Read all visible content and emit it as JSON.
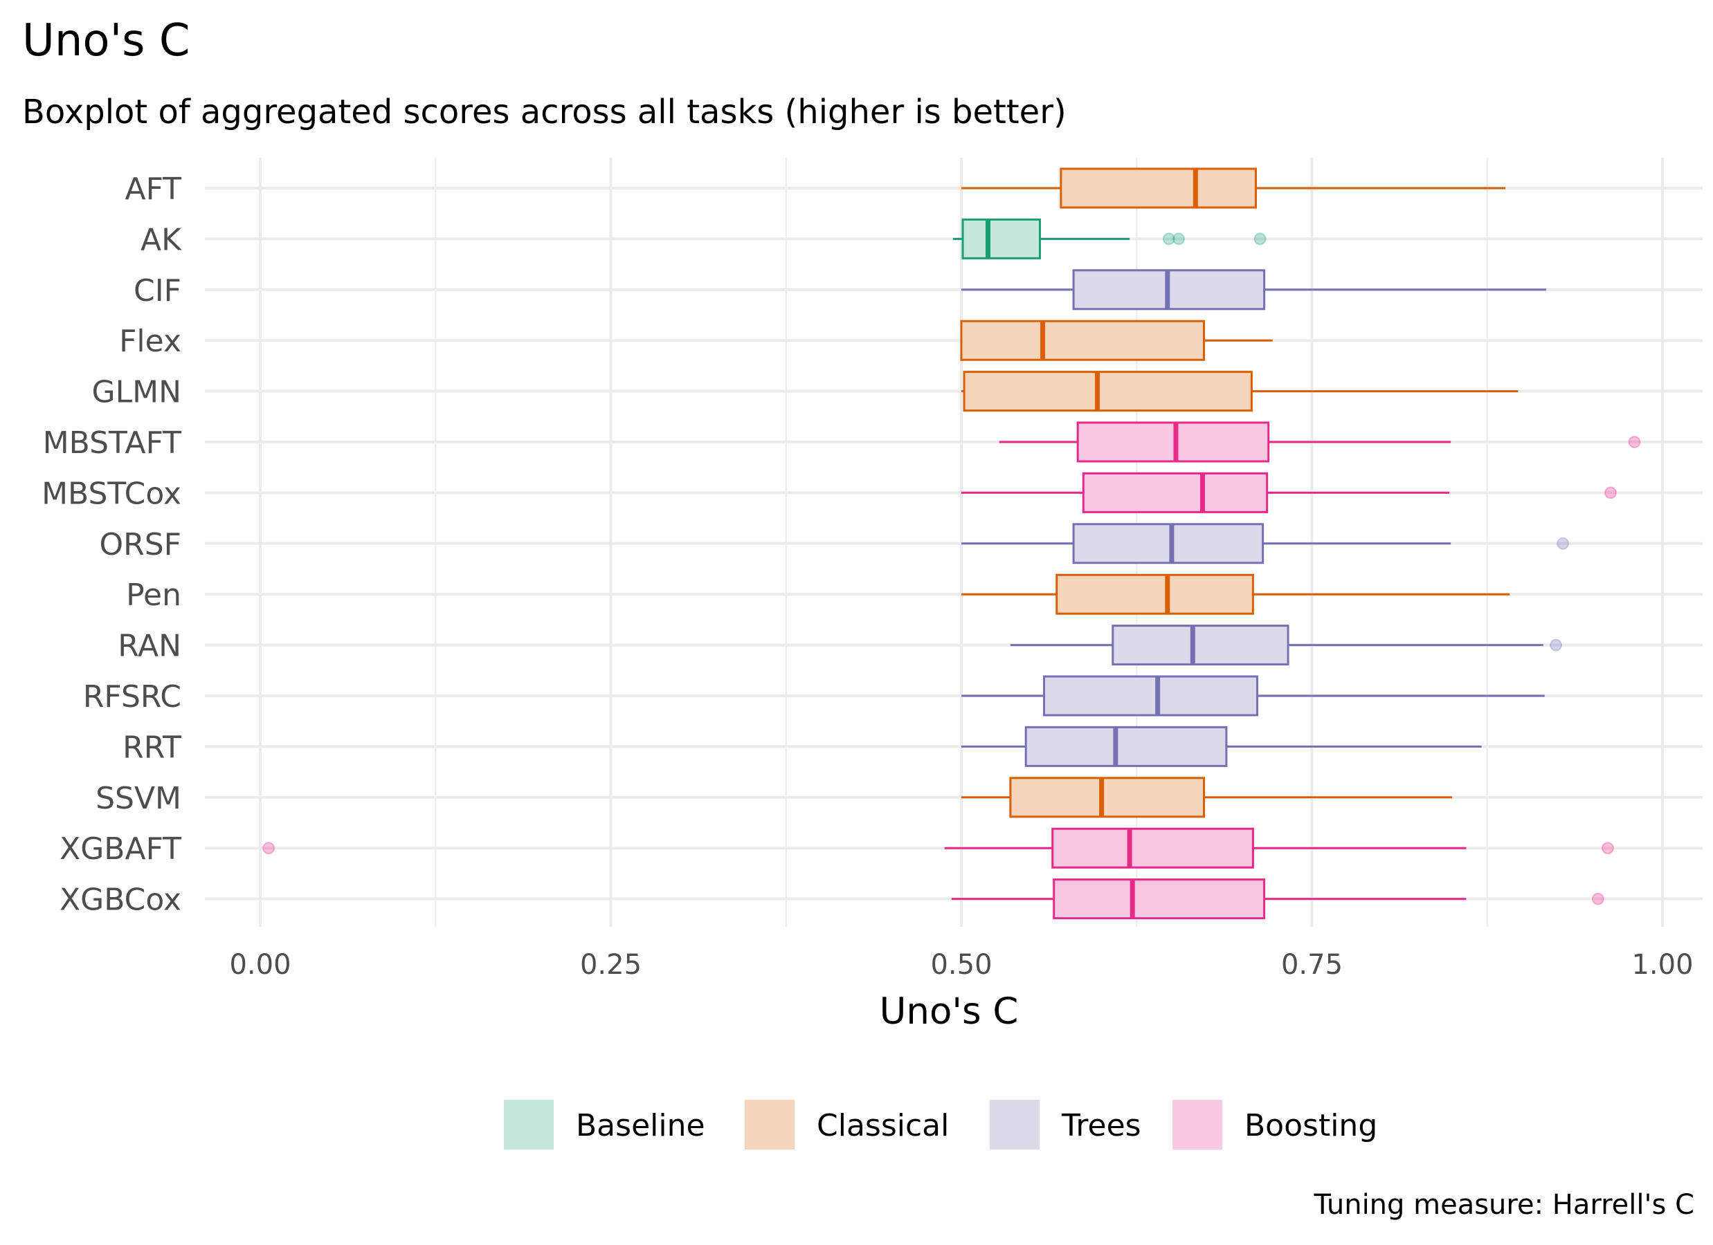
{
  "chart_data": {
    "type": "boxplot",
    "title": "Uno's C",
    "subtitle": "Boxplot of aggregated scores across all tasks (higher is better)",
    "xlabel": "Uno's C",
    "ylabel": "",
    "caption": "Tuning measure: Harrell's C",
    "xlim": [
      -0.05,
      1.03
    ],
    "x_ticks": [
      0.0,
      0.25,
      0.5,
      0.75,
      1.0
    ],
    "x_tick_labels": [
      "0.00",
      "0.25",
      "0.50",
      "0.75",
      "1.00"
    ],
    "grid": true,
    "legend": {
      "position": "bottom",
      "entries": [
        {
          "name": "Baseline",
          "fill": "#c6e7dc",
          "color": "#1b9e77"
        },
        {
          "name": "Classical",
          "fill": "#f5d5bb",
          "color": "#d95f02"
        },
        {
          "name": "Trees",
          "fill": "#dcdaea",
          "color": "#7570b3"
        },
        {
          "name": "Boosting",
          "fill": "#f8c7e1",
          "color": "#e7298a"
        }
      ]
    },
    "series": [
      {
        "name": "AFT",
        "group": "Classical",
        "whisker_low": 0.5,
        "q1": 0.571,
        "median": 0.667,
        "q3": 0.71,
        "whisker_high": 0.888,
        "outliers": []
      },
      {
        "name": "AK",
        "group": "Baseline",
        "whisker_low": 0.494,
        "q1": 0.501,
        "median": 0.519,
        "q3": 0.556,
        "whisker_high": 0.62,
        "outliers": [
          0.648,
          0.655,
          0.713
        ]
      },
      {
        "name": "CIF",
        "group": "Trees",
        "whisker_low": 0.5,
        "q1": 0.58,
        "median": 0.647,
        "q3": 0.716,
        "whisker_high": 0.917,
        "outliers": []
      },
      {
        "name": "Flex",
        "group": "Classical",
        "whisker_low": 0.5,
        "q1": 0.5,
        "median": 0.558,
        "q3": 0.673,
        "whisker_high": 0.722,
        "outliers": []
      },
      {
        "name": "GLMN",
        "group": "Classical",
        "whisker_low": 0.5,
        "q1": 0.502,
        "median": 0.597,
        "q3": 0.707,
        "whisker_high": 0.897,
        "outliers": []
      },
      {
        "name": "MBSTAFT",
        "group": "Boosting",
        "whisker_low": 0.527,
        "q1": 0.583,
        "median": 0.653,
        "q3": 0.719,
        "whisker_high": 0.849,
        "outliers": [
          0.98
        ]
      },
      {
        "name": "MBSTCox",
        "group": "Boosting",
        "whisker_low": 0.5,
        "q1": 0.587,
        "median": 0.672,
        "q3": 0.718,
        "whisker_high": 0.848,
        "outliers": [
          0.963
        ]
      },
      {
        "name": "ORSF",
        "group": "Trees",
        "whisker_low": 0.5,
        "q1": 0.58,
        "median": 0.65,
        "q3": 0.715,
        "whisker_high": 0.849,
        "outliers": [
          0.929
        ]
      },
      {
        "name": "Pen",
        "group": "Classical",
        "whisker_low": 0.5,
        "q1": 0.568,
        "median": 0.647,
        "q3": 0.708,
        "whisker_high": 0.891,
        "outliers": []
      },
      {
        "name": "RAN",
        "group": "Trees",
        "whisker_low": 0.535,
        "q1": 0.608,
        "median": 0.665,
        "q3": 0.733,
        "whisker_high": 0.915,
        "outliers": [
          0.924
        ]
      },
      {
        "name": "RFSRC",
        "group": "Trees",
        "whisker_low": 0.5,
        "q1": 0.559,
        "median": 0.64,
        "q3": 0.711,
        "whisker_high": 0.916,
        "outliers": []
      },
      {
        "name": "RRT",
        "group": "Trees",
        "whisker_low": 0.5,
        "q1": 0.546,
        "median": 0.61,
        "q3": 0.689,
        "whisker_high": 0.871,
        "outliers": []
      },
      {
        "name": "SSVM",
        "group": "Classical",
        "whisker_low": 0.5,
        "q1": 0.535,
        "median": 0.6,
        "q3": 0.673,
        "whisker_high": 0.85,
        "outliers": []
      },
      {
        "name": "XGBAFT",
        "group": "Boosting",
        "whisker_low": 0.488,
        "q1": 0.565,
        "median": 0.62,
        "q3": 0.708,
        "whisker_high": 0.86,
        "outliers": [
          0.006,
          0.961
        ]
      },
      {
        "name": "XGBCox",
        "group": "Boosting",
        "whisker_low": 0.493,
        "q1": 0.566,
        "median": 0.622,
        "q3": 0.716,
        "whisker_high": 0.86,
        "outliers": [
          0.954
        ]
      }
    ]
  }
}
